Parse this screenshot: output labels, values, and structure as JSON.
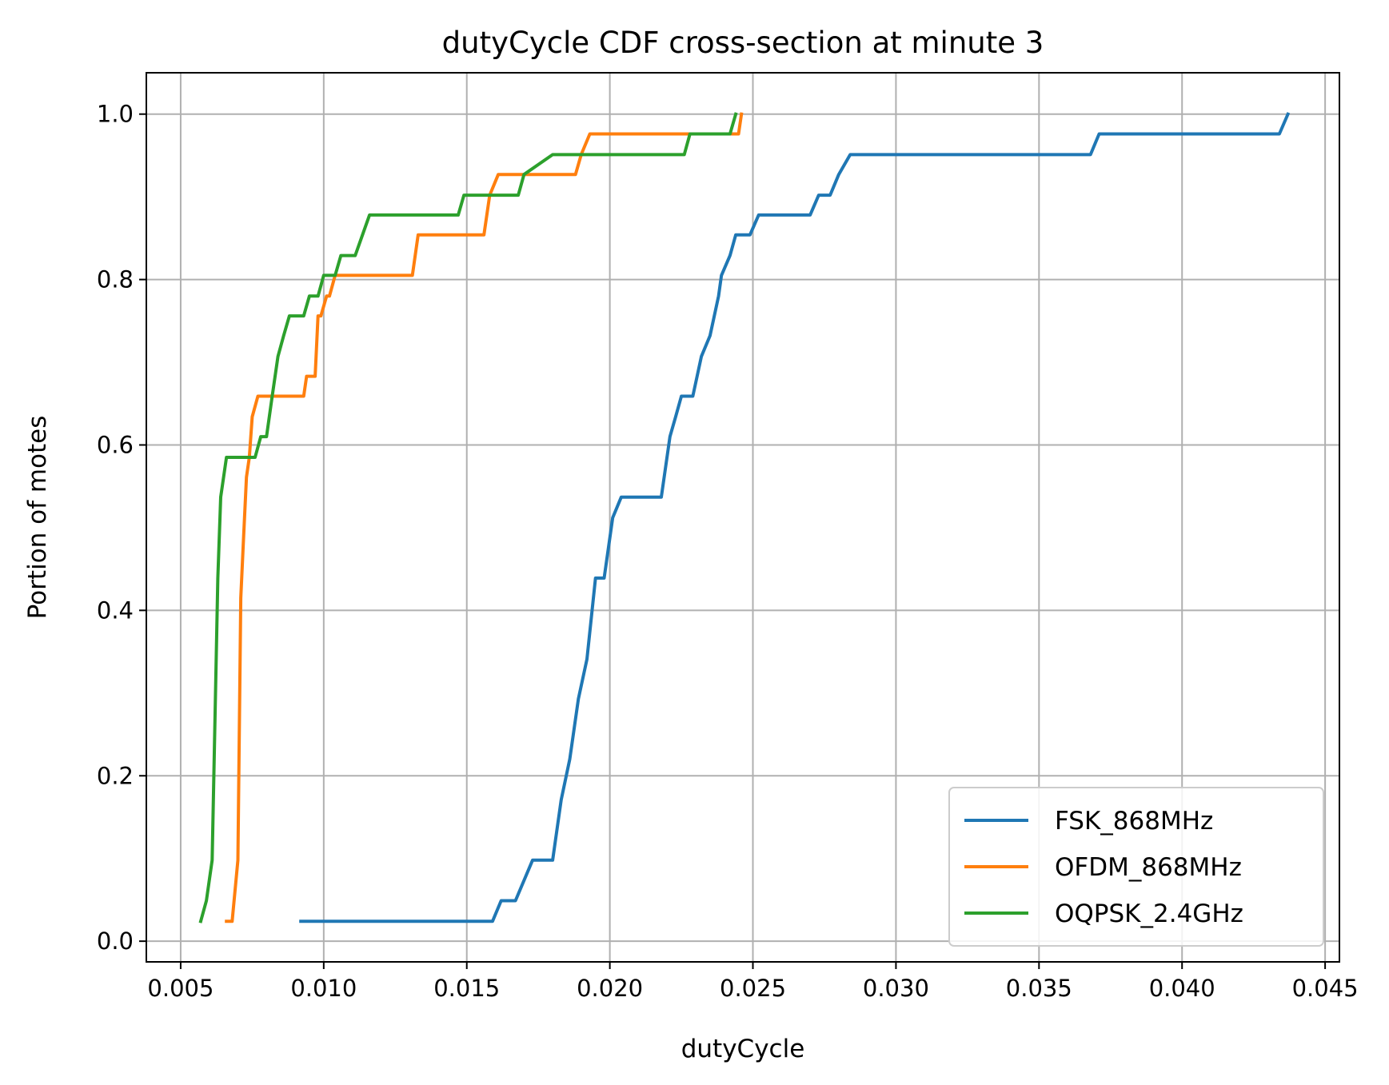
{
  "chart_data": {
    "type": "line",
    "title": "dutyCycle CDF cross-section at minute 3",
    "xlabel": "dutyCycle",
    "ylabel": "Portion of motes",
    "xlim": [
      0.0038,
      0.0455
    ],
    "ylim": [
      -0.025,
      1.05
    ],
    "xticks": [
      0.005,
      0.01,
      0.015,
      0.02,
      0.025,
      0.03,
      0.035,
      0.04,
      0.045
    ],
    "xtick_labels": [
      "0.005",
      "0.010",
      "0.015",
      "0.020",
      "0.025",
      "0.030",
      "0.035",
      "0.040",
      "0.045"
    ],
    "yticks": [
      0.0,
      0.2,
      0.4,
      0.6,
      0.8,
      1.0
    ],
    "ytick_labels": [
      "0.0",
      "0.2",
      "0.4",
      "0.6",
      "0.8",
      "1.0"
    ],
    "grid": true,
    "legend_position": "lower-right",
    "series": [
      {
        "name": "FSK_868MHz",
        "color": "#1f77b4",
        "x": [
          0.0092,
          0.0159,
          0.0162,
          0.0167,
          0.0173,
          0.018,
          0.0183,
          0.0186,
          0.0189,
          0.0192,
          0.0195,
          0.0198,
          0.0201,
          0.0204,
          0.0207,
          0.0218,
          0.0221,
          0.0223,
          0.0225,
          0.0229,
          0.0232,
          0.0235,
          0.0238,
          0.0239,
          0.0242,
          0.0244,
          0.0246,
          0.0249,
          0.0252,
          0.0264,
          0.027,
          0.0273,
          0.0277,
          0.028,
          0.0284,
          0.0368,
          0.0371,
          0.0434,
          0.0437
        ],
        "y": [
          0.024,
          0.024,
          0.049,
          0.049,
          0.098,
          0.098,
          0.171,
          0.22,
          0.293,
          0.341,
          0.439,
          0.439,
          0.512,
          0.537,
          0.537,
          0.537,
          0.61,
          0.634,
          0.659,
          0.659,
          0.707,
          0.732,
          0.78,
          0.805,
          0.829,
          0.854,
          0.854,
          0.854,
          0.878,
          0.878,
          0.878,
          0.902,
          0.902,
          0.927,
          0.951,
          0.951,
          0.976,
          0.976,
          1.0
        ]
      },
      {
        "name": "OFDM_868MHz",
        "color": "#ff7f0e",
        "x": [
          0.0066,
          0.0068,
          0.007,
          0.0071,
          0.0072,
          0.0073,
          0.0074,
          0.0075,
          0.0077,
          0.0093,
          0.0094,
          0.0096,
          0.0097,
          0.0098,
          0.0099,
          0.0101,
          0.0102,
          0.0104,
          0.0131,
          0.0133,
          0.0156,
          0.0158,
          0.0161,
          0.0171,
          0.0175,
          0.0179,
          0.0188,
          0.019,
          0.0193,
          0.0243,
          0.0245,
          0.0246
        ],
        "y": [
          0.024,
          0.024,
          0.098,
          0.415,
          0.488,
          0.561,
          0.585,
          0.634,
          0.659,
          0.659,
          0.683,
          0.683,
          0.683,
          0.756,
          0.756,
          0.78,
          0.78,
          0.805,
          0.805,
          0.854,
          0.854,
          0.902,
          0.927,
          0.927,
          0.927,
          0.927,
          0.927,
          0.951,
          0.976,
          0.976,
          0.976,
          1.0
        ]
      },
      {
        "name": "OQPSK_2.4GHz",
        "color": "#2ca02c",
        "x": [
          0.0057,
          0.0059,
          0.0061,
          0.0063,
          0.0064,
          0.0066,
          0.0068,
          0.0076,
          0.0078,
          0.008,
          0.0082,
          0.0084,
          0.0086,
          0.0088,
          0.0093,
          0.0095,
          0.0098,
          0.01,
          0.0104,
          0.0106,
          0.0111,
          0.0116,
          0.0121,
          0.0147,
          0.0149,
          0.0163,
          0.0168,
          0.017,
          0.018,
          0.0226,
          0.0228,
          0.0242,
          0.0244
        ],
        "y": [
          0.024,
          0.049,
          0.098,
          0.439,
          0.537,
          0.585,
          0.585,
          0.585,
          0.61,
          0.61,
          0.659,
          0.707,
          0.732,
          0.756,
          0.756,
          0.78,
          0.78,
          0.805,
          0.805,
          0.829,
          0.829,
          0.878,
          0.878,
          0.878,
          0.902,
          0.902,
          0.902,
          0.927,
          0.951,
          0.951,
          0.976,
          0.976,
          1.0
        ]
      }
    ]
  }
}
